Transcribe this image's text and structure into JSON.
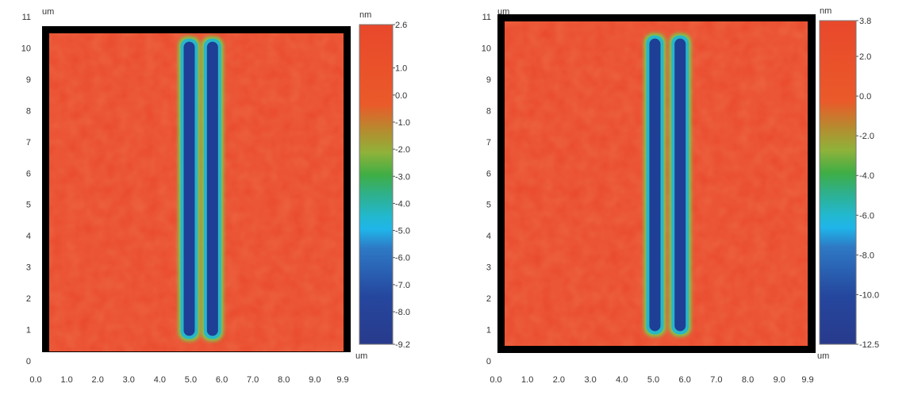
{
  "chart_data": [
    {
      "type": "heatmap",
      "x_unit": "um",
      "y_unit": "um",
      "colorbar_unit": "nm",
      "x_ticks": [
        "0.0",
        "1.0",
        "2.0",
        "3.0",
        "4.0",
        "5.0",
        "6.0",
        "7.0",
        "8.0",
        "9.0",
        "9.9"
      ],
      "x_tick_values": [
        0,
        1,
        2,
        3,
        4,
        5,
        6,
        7,
        8,
        9,
        9.9
      ],
      "y_ticks": [
        "0",
        "1",
        "2",
        "3",
        "4",
        "5",
        "6",
        "7",
        "8",
        "9",
        "10",
        "11"
      ],
      "y_tick_values": [
        0,
        1,
        2,
        3,
        4,
        5,
        6,
        7,
        8,
        9,
        10,
        11
      ],
      "xlim": [
        0,
        9.9
      ],
      "ylim": [
        0,
        11
      ],
      "colorbar_ticks": [
        "2.6",
        "1.0",
        "0.0",
        "-1.0",
        "-2.0",
        "-3.0",
        "-4.0",
        "-5.0",
        "-6.0",
        "-7.0",
        "-8.0",
        "-9.2"
      ],
      "colorbar_values": [
        2.6,
        1.0,
        0.0,
        -1.0,
        -2.0,
        -3.0,
        -4.0,
        -5.0,
        -6.0,
        -7.0,
        -8.0,
        -9.2
      ],
      "colorbar_range": [
        -9.2,
        2.6
      ],
      "trenches": [
        {
          "x_center": 4.95,
          "y_start": 0.7,
          "y_end": 10.3
        },
        {
          "x_center": 5.7,
          "y_start": 0.7,
          "y_end": 10.3
        }
      ],
      "colors": {
        "background": "#e9482b",
        "trench": "#1e3f95",
        "frame": "#000000"
      }
    },
    {
      "type": "heatmap",
      "x_unit": "um",
      "y_unit": "um",
      "colorbar_unit": "nm",
      "x_ticks": [
        "0.0",
        "1.0",
        "2.0",
        "3.0",
        "4.0",
        "5.0",
        "6.0",
        "7.0",
        "8.0",
        "9.0",
        "9.9"
      ],
      "x_tick_values": [
        0,
        1,
        2,
        3,
        4,
        5,
        6,
        7,
        8,
        9,
        9.9
      ],
      "y_ticks": [
        "0",
        "1",
        "2",
        "3",
        "4",
        "5",
        "6",
        "7",
        "8",
        "9",
        "10",
        "11"
      ],
      "y_tick_values": [
        0,
        1,
        2,
        3,
        4,
        5,
        6,
        7,
        8,
        9,
        10,
        11
      ],
      "xlim": [
        0,
        9.9
      ],
      "ylim": [
        0,
        11
      ],
      "colorbar_ticks": [
        "3.8",
        "2.0",
        "0.0",
        "-2.0",
        "-4.0",
        "-6.0",
        "-8.0",
        "-10.0",
        "-12.5"
      ],
      "colorbar_values": [
        3.8,
        2.0,
        0.0,
        -2.0,
        -4.0,
        -6.0,
        -8.0,
        -10.0,
        -12.5
      ],
      "colorbar_range": [
        -12.5,
        3.8
      ],
      "trenches": [
        {
          "x_center": 5.05,
          "y_start": 0.85,
          "y_end": 10.4
        },
        {
          "x_center": 5.85,
          "y_start": 0.85,
          "y_end": 10.4
        }
      ],
      "colors": {
        "background": "#e9482b",
        "trench": "#1e3f95",
        "frame": "#000000"
      }
    }
  ]
}
